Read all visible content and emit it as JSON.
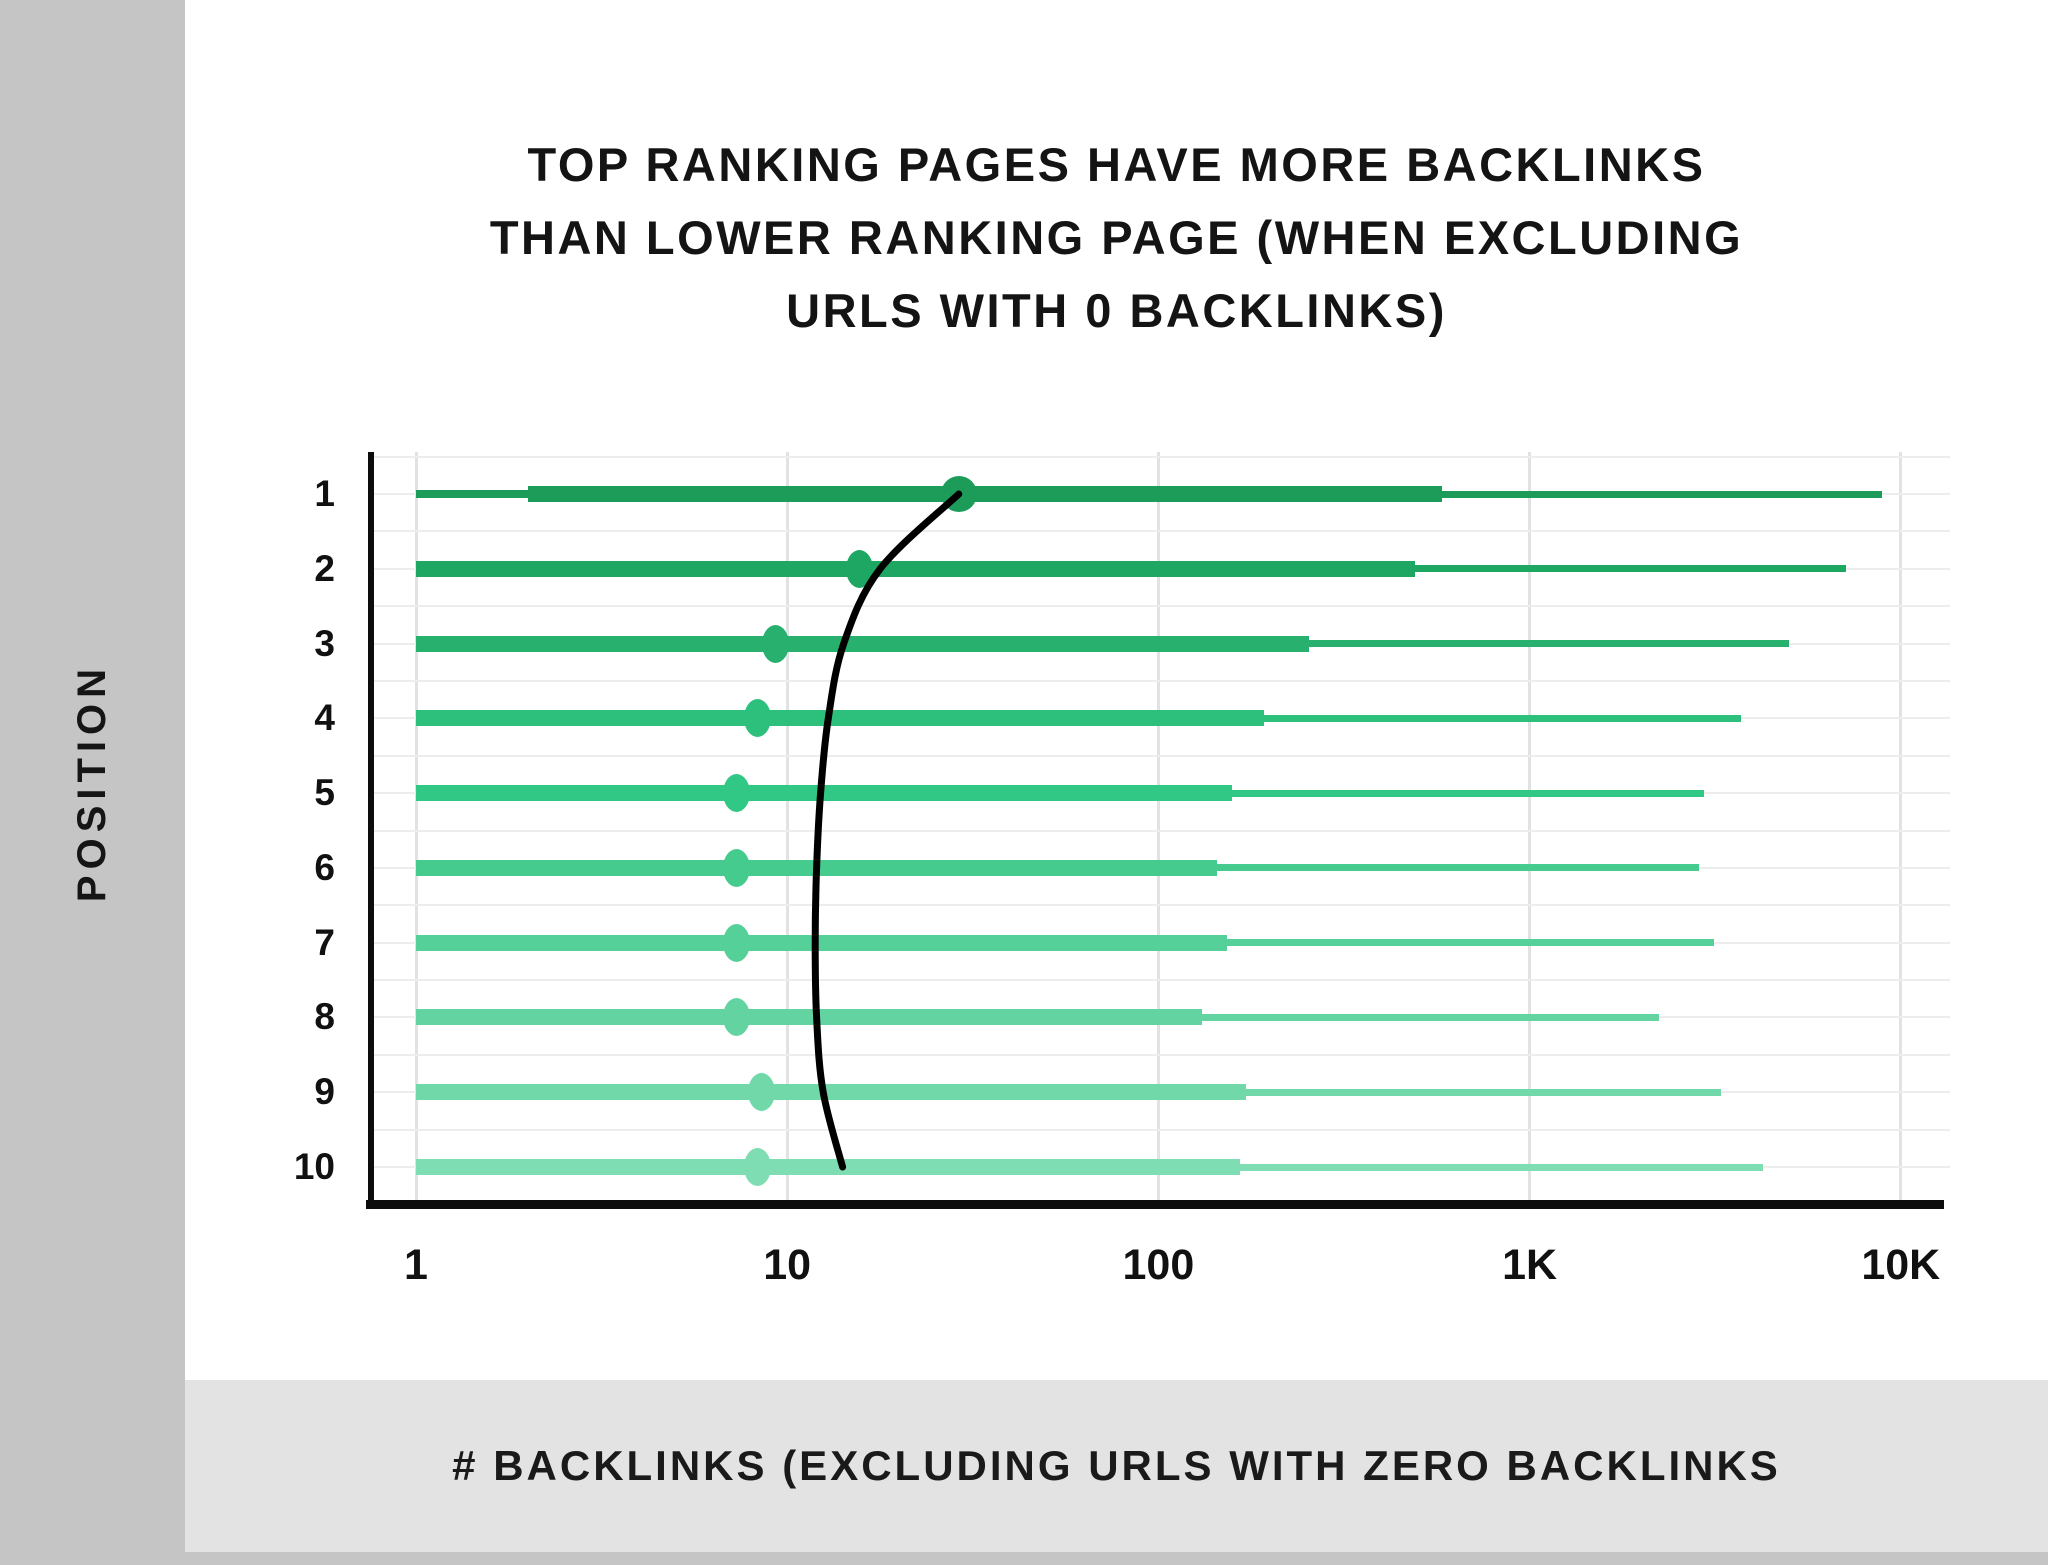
{
  "title": {
    "lines": [
      "TOP RANKING PAGES HAVE MORE BACKLINKS",
      "THAN LOWER RANKING PAGE (WHEN EXCLUDING",
      "URLS WITH 0 BACKLINKS)"
    ]
  },
  "y_axis_label": "POSITION",
  "x_axis_caption": "# BACKLINKS (EXCLUDING URLS WITH ZERO BACKLINKS",
  "colors": {
    "sidebar_gray": "#c5c5c6",
    "caption_band_gray": "#e3e3e4",
    "axis_black": "#0c0c0c",
    "grid_vertical": "#e2e2e2",
    "grid_horizontal": "#ededed",
    "trend_curve": "#000000"
  },
  "chart_data": {
    "type": "box-whisker",
    "orientation": "horizontal",
    "x_scale": "log10",
    "x_range": [
      1,
      10000
    ],
    "xlabel": "# BACKLINKS (EXCLUDING URLS WITH ZERO BACKLINKS",
    "ylabel": "POSITION",
    "grid": "vertical gridlines at log decades; faint horizontal gridlines at half-row steps",
    "legend_position": "none",
    "x_ticks": [
      {
        "label": "1",
        "value": 1
      },
      {
        "label": "10",
        "value": 10
      },
      {
        "label": "100",
        "value": 100
      },
      {
        "label": "1K",
        "value": 1000
      },
      {
        "label": "10K",
        "value": 10000
      }
    ],
    "categories": [
      "1",
      "2",
      "3",
      "4",
      "5",
      "6",
      "7",
      "8",
      "9",
      "10"
    ],
    "series": [
      {
        "position": 1,
        "whisker_min": 1,
        "box_start": 2,
        "median": 29,
        "box_end": 580,
        "whisker_max": 8900,
        "color": "#1d9c59"
      },
      {
        "position": 2,
        "whisker_min": 1,
        "box_start": 1,
        "median": 15.7,
        "box_end": 490,
        "whisker_max": 7100,
        "color": "#1ea763"
      },
      {
        "position": 3,
        "whisker_min": 1,
        "box_start": 1,
        "median": 9.3,
        "box_end": 255,
        "whisker_max": 5000,
        "color": "#28b06e"
      },
      {
        "position": 4,
        "whisker_min": 1,
        "box_start": 1,
        "median": 8.3,
        "box_end": 192,
        "whisker_max": 3700,
        "color": "#2cc07c"
      },
      {
        "position": 5,
        "whisker_min": 1,
        "box_start": 1,
        "median": 7.3,
        "box_end": 158,
        "whisker_max": 2950,
        "color": "#31c785"
      },
      {
        "position": 6,
        "whisker_min": 1,
        "box_start": 1,
        "median": 7.3,
        "box_end": 144,
        "whisker_max": 2860,
        "color": "#45cb8e"
      },
      {
        "position": 7,
        "whisker_min": 1,
        "box_start": 1,
        "median": 7.3,
        "box_end": 153,
        "whisker_max": 3130,
        "color": "#55d098"
      },
      {
        "position": 8,
        "whisker_min": 1,
        "box_start": 1,
        "median": 7.3,
        "box_end": 131,
        "whisker_max": 2230,
        "color": "#63d4a1"
      },
      {
        "position": 9,
        "whisker_min": 1,
        "box_start": 1,
        "median": 8.5,
        "box_end": 172,
        "whisker_max": 3270,
        "color": "#70d8a9"
      },
      {
        "position": 10,
        "whisker_min": 1,
        "box_start": 1,
        "median": 8.3,
        "box_end": 166,
        "whisker_max": 4250,
        "color": "#7eddb2"
      }
    ],
    "trend_line": {
      "name": "median trend curve",
      "color": "#000000",
      "values_by_position": [
        29,
        17.8,
        14.2,
        12.9,
        12.3,
        12.0,
        11.9,
        12.0,
        12.5,
        14.1
      ]
    }
  }
}
